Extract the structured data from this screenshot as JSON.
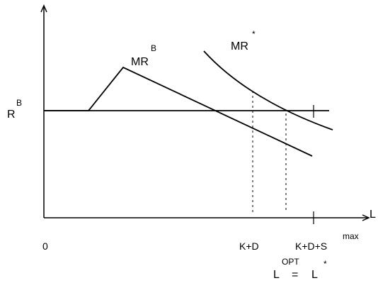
{
  "labels": {
    "y_axis": "R",
    "y_axis_sup": "B",
    "x_axis": "L",
    "origin": "0",
    "mrb": "MR",
    "mrb_sup": "B",
    "mrstar": "MR",
    "mrstar_sup": "*",
    "kd": "K+D",
    "kds": "K+D+S",
    "kds_sup": "max",
    "lopt": "L",
    "lopt_sup": "OPT",
    "equals": "=",
    "lstar": "L",
    "lstar_sup": "*"
  },
  "colors": {
    "ink": "#000000",
    "background": "#ffffff"
  }
}
